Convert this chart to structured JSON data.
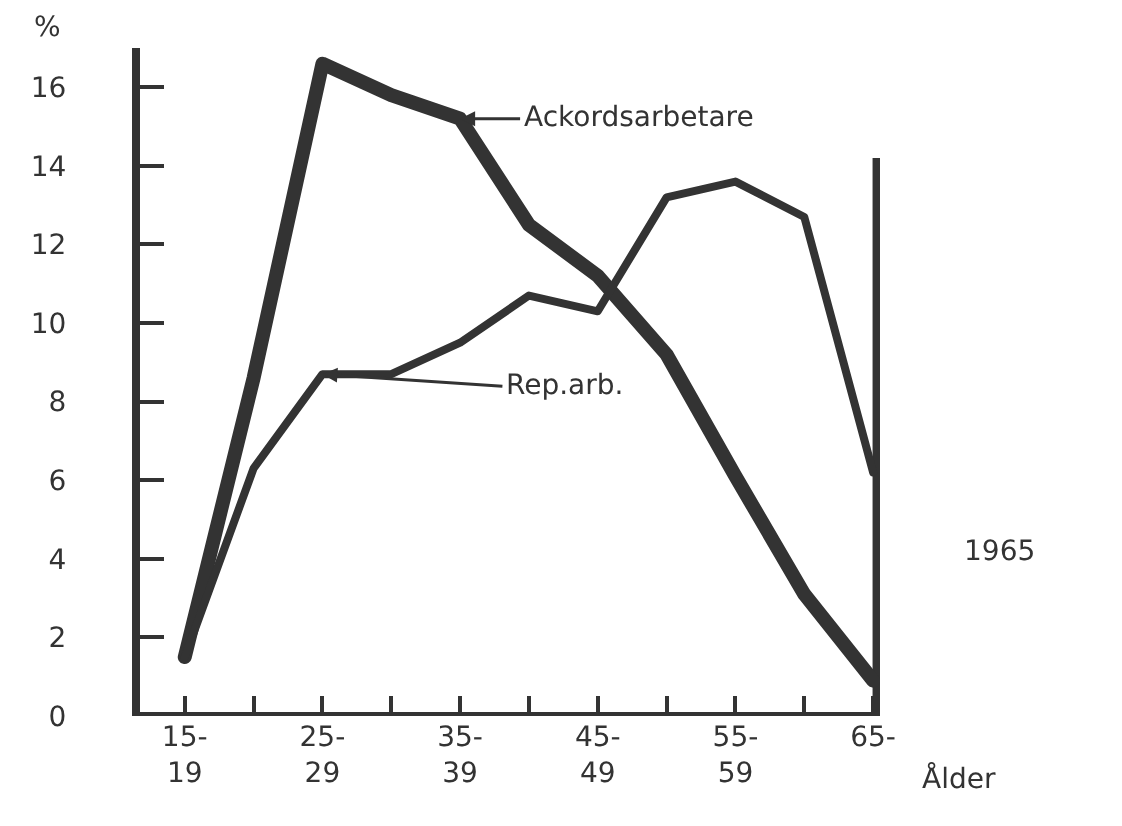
{
  "chart_data": {
    "type": "line",
    "categories": [
      "15-\n19",
      null,
      "25-\n29",
      null,
      "35-\n39",
      null,
      "45-\n49",
      null,
      "55-\n59",
      null,
      "65-"
    ],
    "series": [
      {
        "color": "#333333",
        "values": [
          1.5,
          8.6,
          16.6,
          15.8,
          15.2,
          12.5,
          11.2,
          9.2,
          6.1,
          3.1,
          0.9
        ]
      },
      {
        "color": "#333333",
        "values": [
          1.5,
          6.3,
          8.7,
          8.7,
          9.5,
          10.7,
          10.3,
          13.2,
          13.6,
          12.7,
          6.2
        ]
      }
    ],
    "ylim": [
      0,
      17
    ],
    "yticks": [
      0,
      2,
      4,
      6,
      8,
      10,
      12,
      14,
      16
    ],
    "ylabel": "%",
    "xlabel": "Ålder",
    "annotations": [
      {
        "text": "Ackordsarbetare",
        "x": "35-\n39",
        "y": 15.2
      },
      {
        "text": "Rep.arb.",
        "x": "25-\n29",
        "y": 8.7
      },
      "1965"
    ],
    "grid": false,
    "marker": "none",
    "line_style": "solid"
  }
}
